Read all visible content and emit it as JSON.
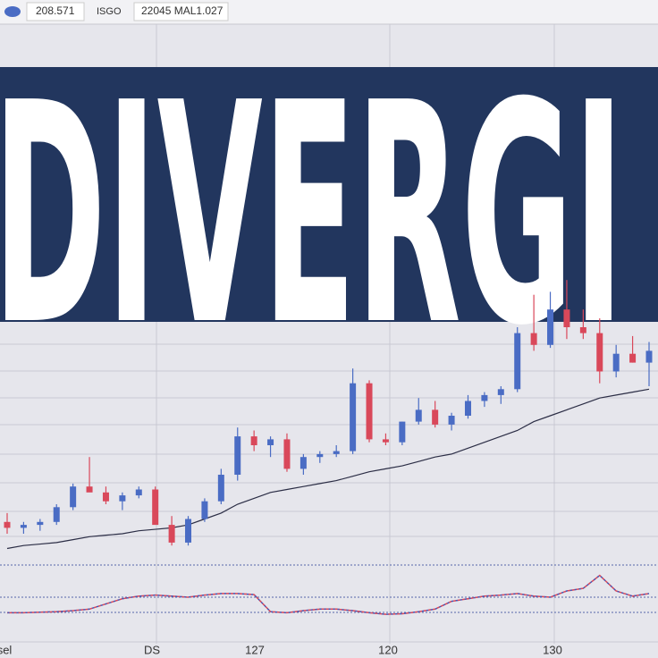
{
  "toolbar": [
    "208.571",
    "ISGO",
    "22045 MAL1.027"
  ],
  "banner": "DIVERGI",
  "chart_data": [
    {
      "type": "candlestick",
      "ylim": [
        100,
        200
      ],
      "open": [
        114,
        112,
        113,
        114,
        119,
        126,
        124,
        121,
        123,
        125,
        113,
        107,
        115,
        121,
        130,
        143,
        140,
        142,
        132,
        136,
        137,
        138,
        161,
        142,
        141,
        148,
        152,
        147,
        150,
        155,
        157,
        159,
        178,
        174,
        186,
        180,
        178,
        165,
        171,
        168
      ],
      "high": [
        117,
        114,
        115,
        120,
        127,
        136,
        126,
        124,
        126,
        126,
        116,
        116,
        122,
        132,
        146,
        145,
        143,
        144,
        137,
        138,
        140,
        166,
        162,
        144,
        148,
        156,
        155,
        151,
        157,
        158,
        160,
        180,
        191,
        192,
        196,
        186,
        183,
        174,
        177,
        175
      ],
      "low": [
        110,
        110,
        111,
        113,
        118,
        125,
        120,
        118,
        122,
        114,
        106,
        106,
        114,
        120,
        128,
        138,
        136,
        131,
        130,
        134,
        136,
        137,
        141,
        140,
        140,
        147,
        146,
        145,
        149,
        153,
        154,
        158,
        172,
        173,
        176,
        176,
        161,
        163,
        168,
        160
      ],
      "close": [
        112,
        113,
        114,
        119,
        126,
        124,
        121,
        123,
        125,
        113,
        107,
        115,
        121,
        130,
        143,
        140,
        142,
        132,
        136,
        137,
        138,
        161,
        142,
        141,
        148,
        152,
        147,
        150,
        155,
        157,
        159,
        178,
        174,
        186,
        180,
        178,
        165,
        171,
        168,
        172
      ],
      "ma": [
        105,
        106,
        106.5,
        107,
        108,
        109,
        109.5,
        110,
        111,
        111.5,
        112,
        113,
        115,
        117,
        120,
        122,
        124,
        125,
        126,
        127,
        128,
        129.5,
        131,
        132,
        133,
        134.5,
        136,
        137,
        139,
        141,
        143,
        145,
        148,
        150,
        152,
        154,
        156,
        157,
        158,
        159
      ],
      "up_color": "#4a6cc4",
      "down_color": "#d9485a",
      "ma_color": "#2b2d45",
      "x_labels": [
        "sel",
        "DS",
        "127",
        "120",
        "130"
      ]
    },
    {
      "type": "line",
      "ylim": [
        0,
        100
      ],
      "values": [
        8,
        8,
        9,
        10,
        12,
        15,
        25,
        35,
        40,
        42,
        40,
        38,
        42,
        45,
        45,
        43,
        10,
        8,
        12,
        15,
        15,
        12,
        8,
        5,
        6,
        10,
        15,
        30,
        35,
        40,
        42,
        45,
        40,
        38,
        50,
        55,
        80,
        50,
        40,
        45
      ],
      "colors": [
        "#3f56b8",
        "#d9485a"
      ]
    }
  ]
}
